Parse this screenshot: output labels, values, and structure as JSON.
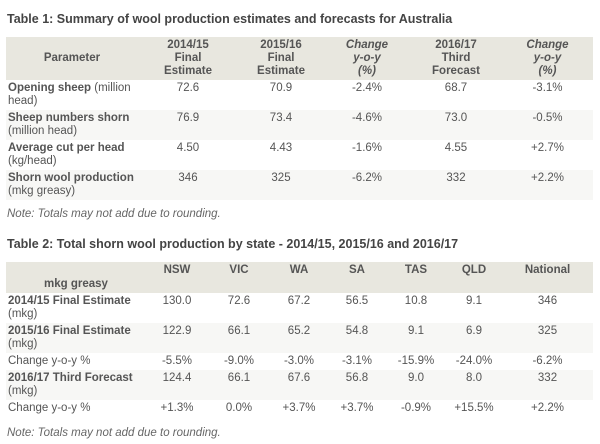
{
  "table1": {
    "title": "Table 1: Summary of wool production estimates and forecasts for Australia",
    "headers": [
      {
        "l1": "Parameter",
        "l2": "",
        "l3": "",
        "italic": false
      },
      {
        "l1": "2014/15",
        "l2": "Final",
        "l3": "Estimate",
        "italic": false
      },
      {
        "l1": "2015/16",
        "l2": "Final",
        "l3": "Estimate",
        "italic": false
      },
      {
        "l1": "Change",
        "l2": "y-o-y",
        "l3": "(%)",
        "italic": true
      },
      {
        "l1": "2016/17",
        "l2": "Third",
        "l3": "Forecast",
        "italic": false
      },
      {
        "l1": "Change",
        "l2": "y-o-y",
        "l3": "(%)",
        "italic": true
      }
    ],
    "rows": [
      {
        "name": "Opening sheep",
        "unit": " (million head)",
        "values": [
          "72.6",
          "70.9",
          "-2.4%",
          "68.7",
          "-3.1%"
        ]
      },
      {
        "name": "Sheep numbers shorn",
        "unit": " (million head)",
        "values": [
          "76.9",
          "73.4",
          "-4.6%",
          "73.0",
          "-0.5%"
        ]
      },
      {
        "name": "Average cut per head",
        "unit": " (kg/head)",
        "values": [
          "4.50",
          "4.43",
          "-1.6%",
          "4.55",
          "+2.7%"
        ]
      },
      {
        "name": "Shorn wool production",
        "unit": " (mkg greasy)",
        "values": [
          "346",
          "325",
          "-6.2%",
          "332",
          "+2.2%"
        ]
      }
    ],
    "note": "Note: Totals may not add due to rounding."
  },
  "table2": {
    "title": "Table 2: Total shorn wool production by state - 2014/15, 2015/16 and 2016/17",
    "headers": [
      "mkg greasy",
      "NSW",
      "VIC",
      "WA",
      "SA",
      "TAS",
      "QLD",
      "National"
    ],
    "rows": [
      {
        "name": "2014/15 Final Estimate",
        "unit": " (mkg)",
        "values": [
          "130.0",
          "72.6",
          "67.2",
          "56.5",
          "10.8",
          "9.1",
          "346"
        ]
      },
      {
        "name": "2015/16 Final Estimate",
        "unit": " (mkg)",
        "values": [
          "122.9",
          "66.1",
          "65.2",
          "54.8",
          "9.1",
          "6.9",
          "325"
        ]
      },
      {
        "name": "Change y-o-y %",
        "unit": "",
        "values": [
          "-5.5%",
          "-9.0%",
          "-3.0%",
          "-3.1%",
          "-15.9%",
          "-24.0%",
          "-6.2%"
        ]
      },
      {
        "name": "2016/17 Third Forecast",
        "unit": " (mkg)",
        "values": [
          "124.4",
          "66.1",
          "67.6",
          "56.8",
          "9.0",
          "8.0",
          "332"
        ]
      },
      {
        "name": "Change y-o-y %",
        "unit": "",
        "values": [
          "+1.3%",
          "0.0%",
          "+3.7%",
          "+3.7%",
          "-0.9%",
          "+15.5%",
          "+2.2%"
        ]
      }
    ],
    "note": "Note: Totals may not add due to rounding."
  }
}
